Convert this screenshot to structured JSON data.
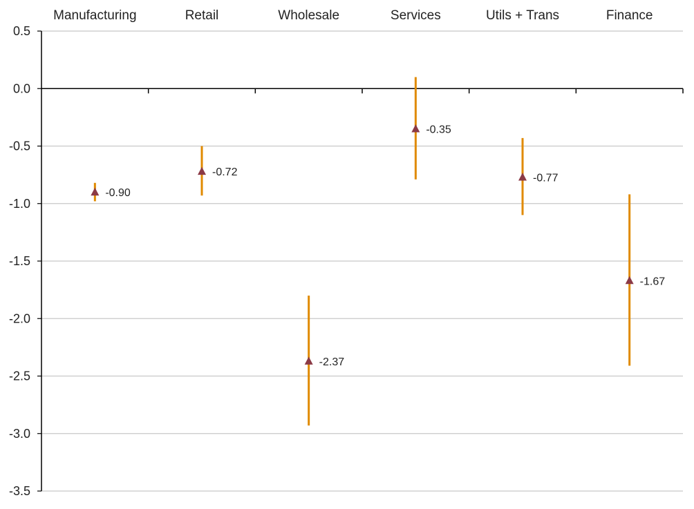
{
  "chart_data": {
    "type": "scatter",
    "subtype": "point-with-error-range",
    "categories": [
      "Manufacturing",
      "Retail",
      "Wholesale",
      "Services",
      "Utils + Trans",
      "Finance"
    ],
    "series": [
      {
        "values": [
          -0.9,
          -0.72,
          -2.37,
          -0.35,
          -0.77,
          -1.67
        ],
        "low": [
          -0.98,
          -0.93,
          -2.93,
          -0.79,
          -1.1,
          -2.41
        ],
        "high": [
          -0.82,
          -0.5,
          -1.8,
          0.1,
          -0.43,
          -0.92
        ],
        "value_labels": [
          "-0.90",
          "-0.72",
          "-2.37",
          "-0.35",
          "-0.77",
          "-1.67"
        ]
      }
    ],
    "yticks": [
      "0.5",
      "0.0",
      "-0.5",
      "-1.0",
      "-1.5",
      "-2.0",
      "-2.5",
      "-3.0",
      "-3.5"
    ],
    "ytick_values": [
      0.5,
      0.0,
      -0.5,
      -1.0,
      -1.5,
      -2.0,
      -2.5,
      -3.0,
      -3.5
    ],
    "ylim": [
      -3.5,
      0.5
    ],
    "grid": true,
    "legend": "none",
    "category_axis_position": "top",
    "colors": {
      "range_line": "#e08a00",
      "marker": "#8b3a46",
      "gridline": "#c8c8c8",
      "axis": "#000000"
    },
    "marker_shape": "triangle"
  }
}
